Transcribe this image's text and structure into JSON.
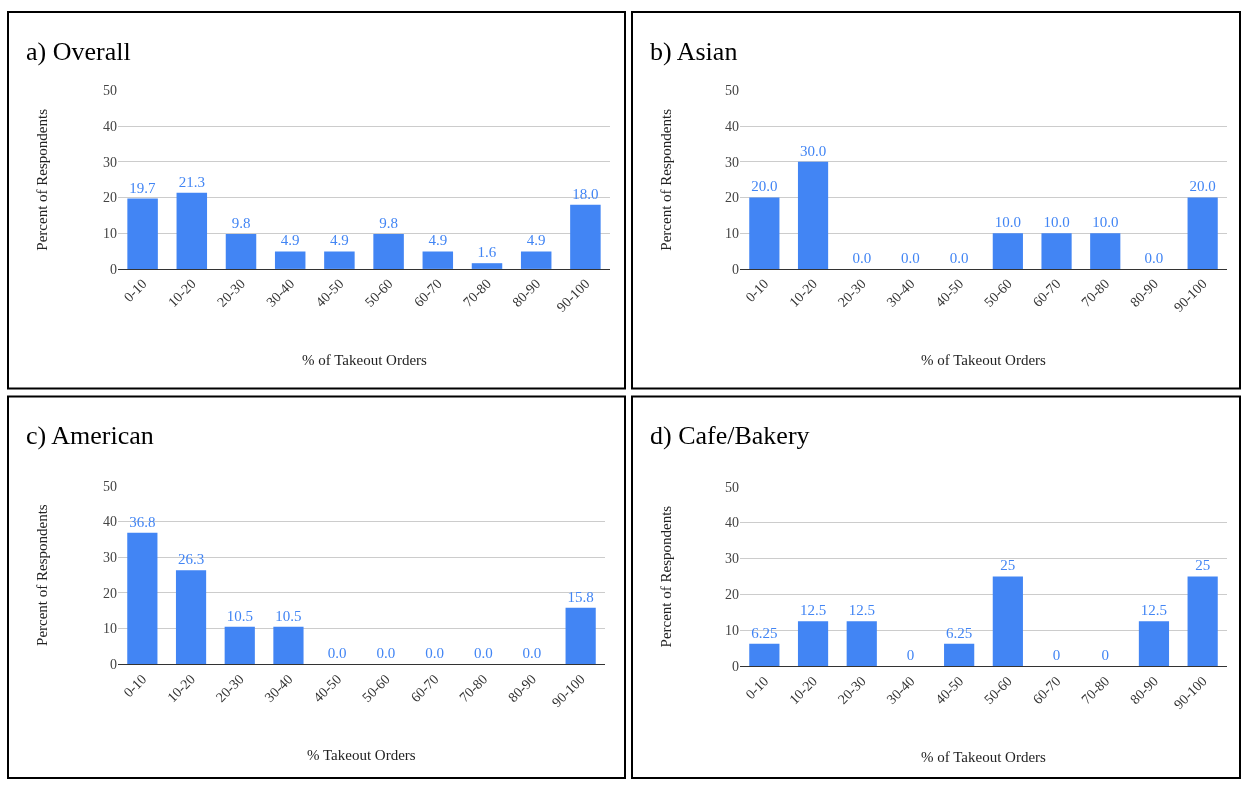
{
  "chart_data": [
    {
      "type": "bar",
      "title": "a) Overall",
      "xlabel": "% of Takeout Orders",
      "ylabel": "Percent of Respondents",
      "categories": [
        "0-10",
        "10-20",
        "20-30",
        "30-40",
        "40-50",
        "50-60",
        "60-70",
        "70-80",
        "80-90",
        "90-100"
      ],
      "values": [
        19.7,
        21.3,
        9.8,
        4.9,
        4.9,
        9.8,
        4.9,
        1.6,
        4.9,
        18.0
      ],
      "value_labels": [
        "19.7",
        "21.3",
        "9.8",
        "4.9",
        "4.9",
        "9.8",
        "4.9",
        "1.6",
        "4.9",
        "18.0"
      ],
      "color": "#4285f4",
      "ylim": [
        0,
        50
      ],
      "yticks": [
        0,
        10,
        20,
        30,
        40,
        50
      ],
      "grid": "y"
    },
    {
      "type": "bar",
      "title": "b) Asian",
      "xlabel": "% of Takeout Orders",
      "ylabel": "Percent of Respondents",
      "categories": [
        "0-10",
        "10-20",
        "20-30",
        "30-40",
        "40-50",
        "50-60",
        "60-70",
        "70-80",
        "80-90",
        "90-100"
      ],
      "values": [
        20.0,
        30.0,
        0.0,
        0.0,
        0.0,
        10.0,
        10.0,
        10.0,
        0.0,
        20.0
      ],
      "value_labels": [
        "20.0",
        "30.0",
        "0.0",
        "0.0",
        "0.0",
        "10.0",
        "10.0",
        "10.0",
        "0.0",
        "20.0"
      ],
      "color": "#4285f4",
      "ylim": [
        0,
        50
      ],
      "yticks": [
        0,
        10,
        20,
        30,
        40,
        50
      ],
      "grid": "y"
    },
    {
      "type": "bar",
      "title": "c) American",
      "xlabel": "% Takeout Orders",
      "ylabel": "Percent of Respondents",
      "categories": [
        "0-10",
        "10-20",
        "20-30",
        "30-40",
        "40-50",
        "50-60",
        "60-70",
        "70-80",
        "80-90",
        "90-100"
      ],
      "values": [
        36.8,
        26.3,
        10.5,
        10.5,
        0.0,
        0.0,
        0.0,
        0.0,
        0.0,
        15.8
      ],
      "value_labels": [
        "36.8",
        "26.3",
        "10.5",
        "10.5",
        "0.0",
        "0.0",
        "0.0",
        "0.0",
        "0.0",
        "15.8"
      ],
      "color": "#4285f4",
      "ylim": [
        0,
        50
      ],
      "yticks": [
        0,
        10,
        20,
        30,
        40,
        50
      ],
      "grid": "y"
    },
    {
      "type": "bar",
      "title": "d) Cafe/Bakery",
      "xlabel": "% of Takeout Orders",
      "ylabel": "Percent of Respondents",
      "categories": [
        "0-10",
        "10-20",
        "20-30",
        "30-40",
        "40-50",
        "50-60",
        "60-70",
        "70-80",
        "80-90",
        "90-100"
      ],
      "values": [
        6.25,
        12.5,
        12.5,
        0,
        6.25,
        25,
        0,
        0,
        12.5,
        25
      ],
      "value_labels": [
        "6.25",
        "12.5",
        "12.5",
        "0",
        "6.25",
        "25",
        "0",
        "0",
        "12.5",
        "25"
      ],
      "color": "#4285f4",
      "ylim": [
        0,
        50
      ],
      "yticks": [
        0,
        10,
        20,
        30,
        40,
        50
      ],
      "grid": "y"
    }
  ]
}
